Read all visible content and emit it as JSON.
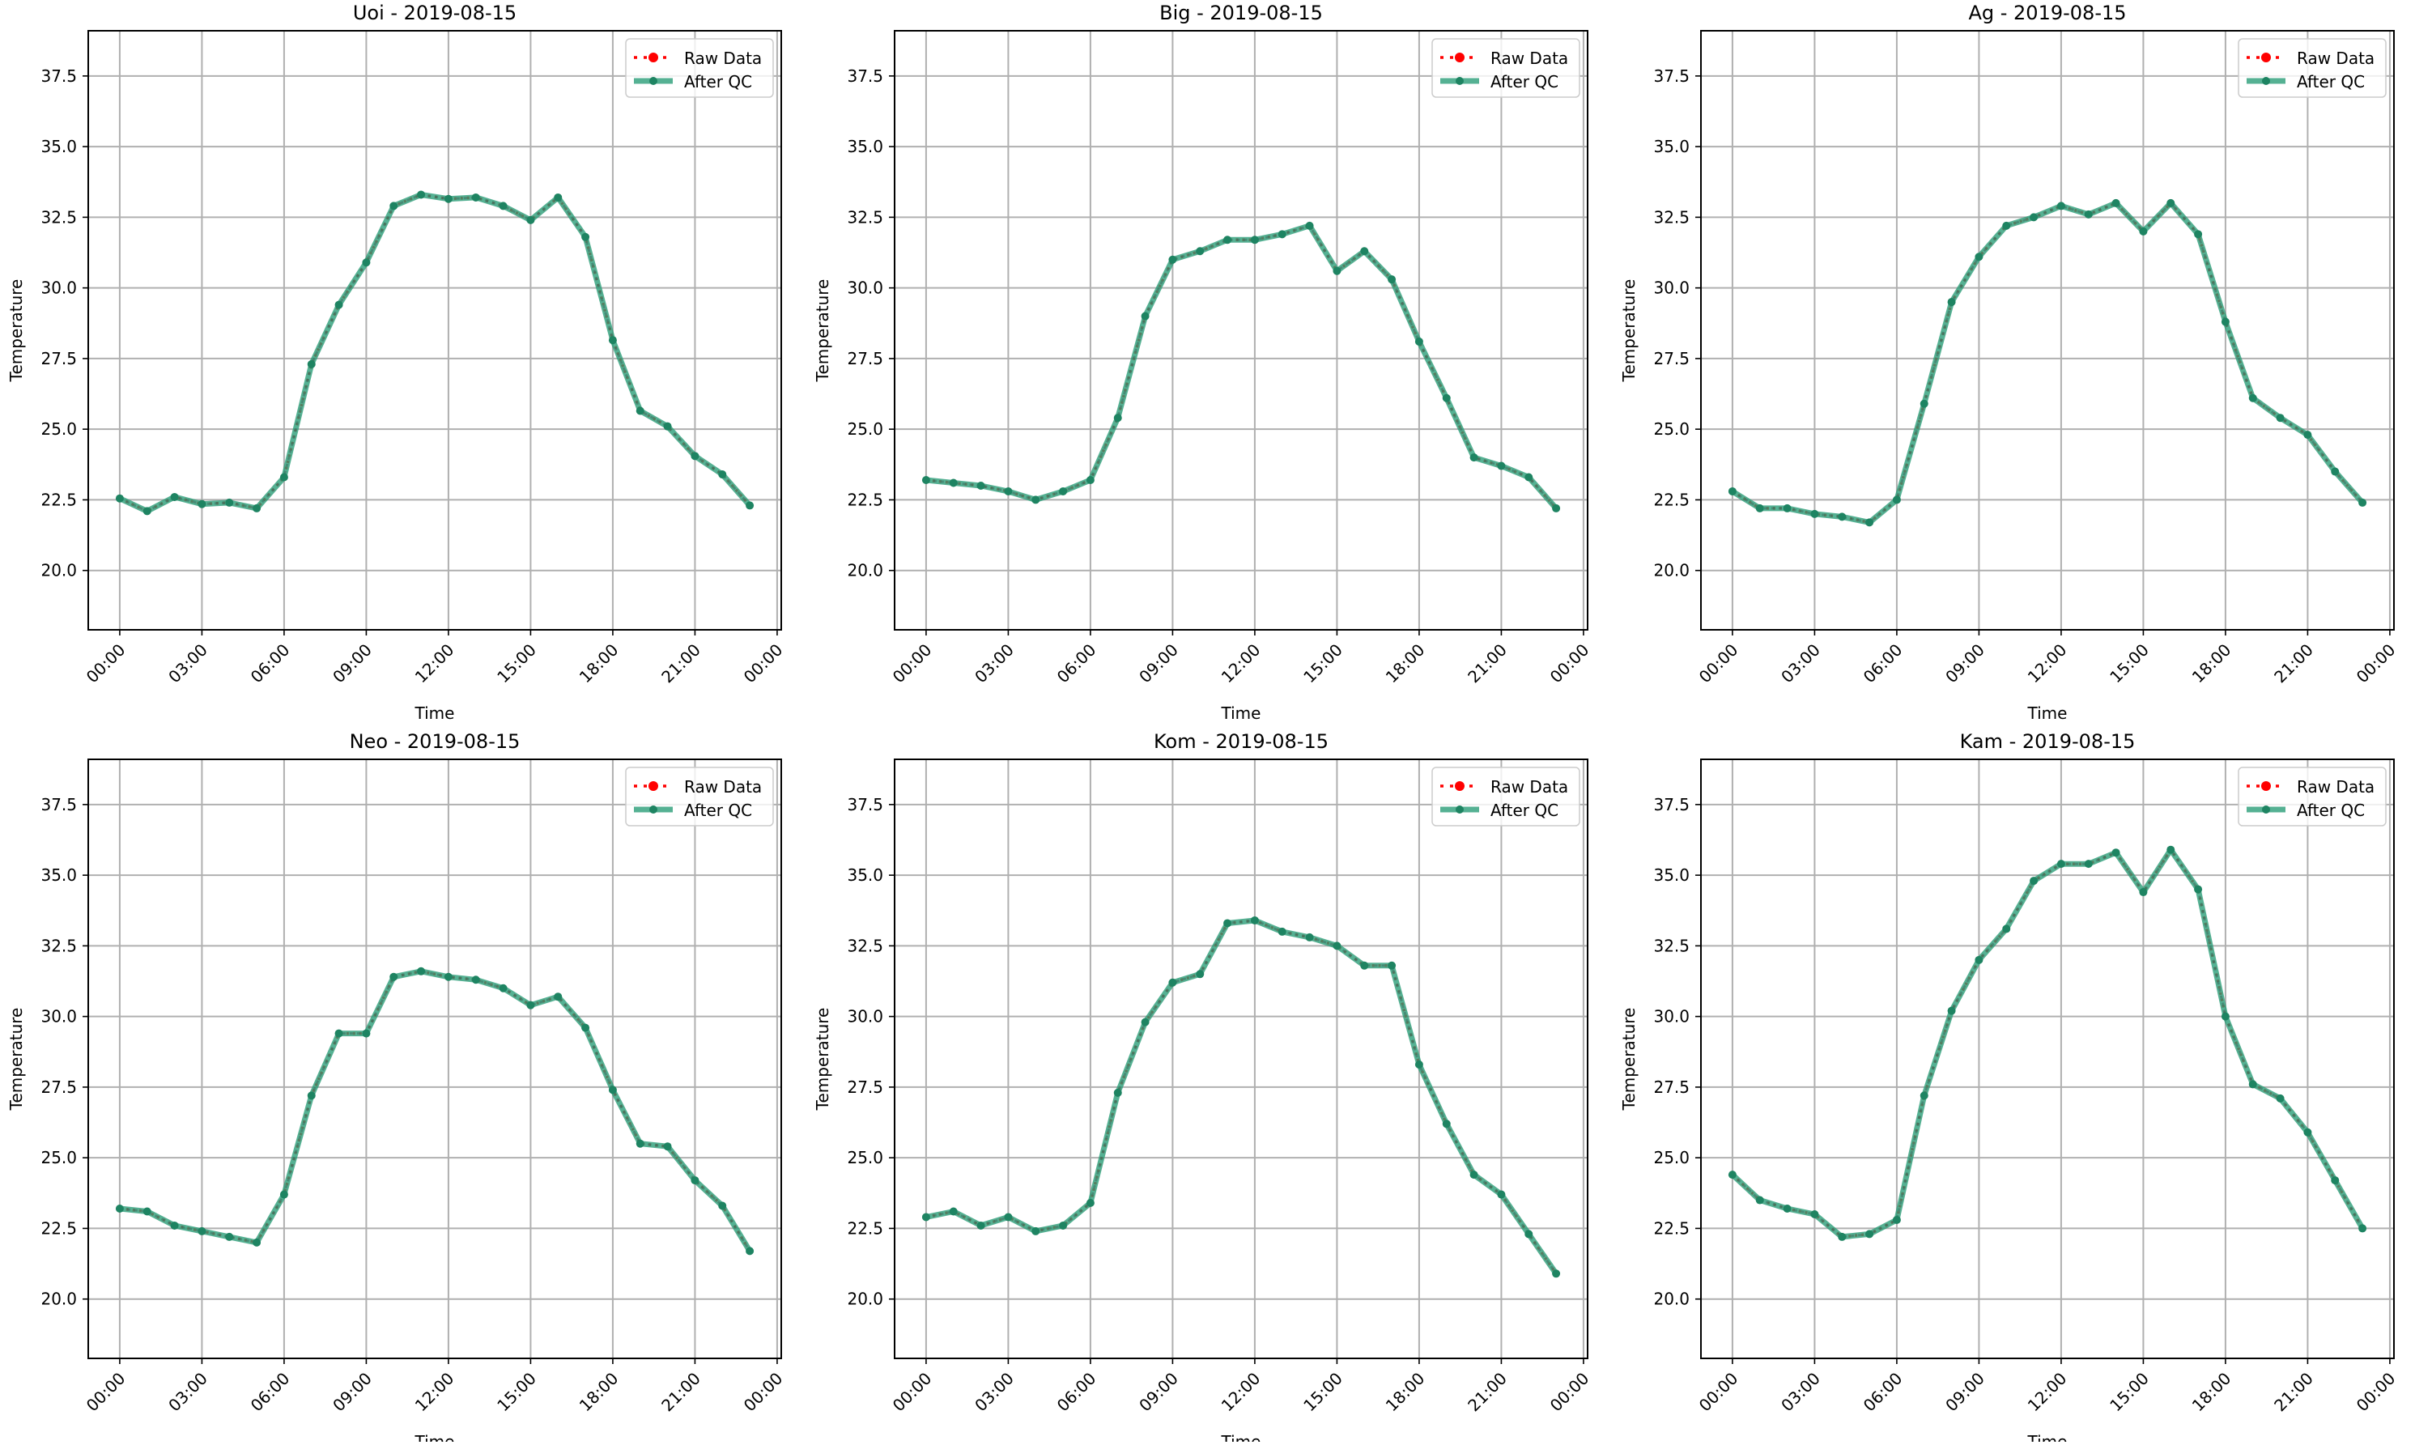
{
  "colors": {
    "raw": "#ff0000",
    "qc": "#2a9d78",
    "qc_marker": "#1e8462",
    "grid": "#b0b0b0"
  },
  "chart_data": [
    {
      "type": "line",
      "title": "Uoi - 2019-08-15",
      "xlabel": "Time",
      "ylabel": "Temperature",
      "x_tick_labels": [
        "00:00",
        "03:00",
        "06:00",
        "09:00",
        "12:00",
        "15:00",
        "18:00",
        "21:00",
        "00:00"
      ],
      "y_ticks": [
        20.0,
        22.5,
        25.0,
        27.5,
        30.0,
        32.5,
        35.0,
        37.5
      ],
      "ylim": [
        17.9,
        39.1
      ],
      "grid": true,
      "legend": "top-right",
      "x_hours": [
        0,
        1,
        2,
        3,
        4,
        5,
        6,
        7,
        8,
        9,
        10,
        11,
        12,
        13,
        14,
        15,
        16,
        17,
        18,
        19,
        20,
        21,
        22,
        23
      ],
      "series": [
        {
          "name": "Raw Data",
          "style": "dotted",
          "values": [
            22.55,
            22.1,
            22.6,
            22.35,
            22.4,
            22.2,
            23.3,
            27.3,
            29.4,
            30.9,
            32.9,
            33.3,
            33.15,
            33.2,
            32.9,
            32.4,
            33.2,
            31.8,
            28.15,
            25.65,
            25.1,
            24.05,
            23.4,
            22.3
          ]
        },
        {
          "name": "After QC",
          "style": "solid",
          "values": [
            22.55,
            22.1,
            22.6,
            22.35,
            22.4,
            22.2,
            23.3,
            27.3,
            29.4,
            30.9,
            32.9,
            33.3,
            33.15,
            33.2,
            32.9,
            32.4,
            33.2,
            31.8,
            28.15,
            25.65,
            25.1,
            24.05,
            23.4,
            22.3
          ]
        }
      ]
    },
    {
      "type": "line",
      "title": "Big - 2019-08-15",
      "xlabel": "Time",
      "ylabel": "Temperature",
      "x_tick_labels": [
        "00:00",
        "03:00",
        "06:00",
        "09:00",
        "12:00",
        "15:00",
        "18:00",
        "21:00",
        "00:00"
      ],
      "y_ticks": [
        20.0,
        22.5,
        25.0,
        27.5,
        30.0,
        32.5,
        35.0,
        37.5
      ],
      "ylim": [
        17.9,
        39.1
      ],
      "grid": true,
      "legend": "top-right",
      "x_hours": [
        0,
        1,
        2,
        3,
        4,
        5,
        6,
        7,
        8,
        9,
        10,
        11,
        12,
        13,
        14,
        15,
        16,
        17,
        18,
        19,
        20,
        21,
        22,
        23
      ],
      "series": [
        {
          "name": "Raw Data",
          "style": "dotted",
          "values": [
            23.2,
            23.1,
            23.0,
            22.8,
            22.5,
            22.8,
            23.2,
            25.4,
            29.0,
            31.0,
            31.3,
            31.7,
            31.7,
            31.9,
            32.2,
            30.6,
            31.3,
            30.3,
            28.1,
            26.1,
            24.0,
            23.7,
            23.3,
            22.2
          ]
        },
        {
          "name": "After QC",
          "style": "solid",
          "values": [
            23.2,
            23.1,
            23.0,
            22.8,
            22.5,
            22.8,
            23.2,
            25.4,
            29.0,
            31.0,
            31.3,
            31.7,
            31.7,
            31.9,
            32.2,
            30.6,
            31.3,
            30.3,
            28.1,
            26.1,
            24.0,
            23.7,
            23.3,
            22.2
          ]
        }
      ]
    },
    {
      "type": "line",
      "title": "Ag - 2019-08-15",
      "xlabel": "Time",
      "ylabel": "Temperature",
      "x_tick_labels": [
        "00:00",
        "03:00",
        "06:00",
        "09:00",
        "12:00",
        "15:00",
        "18:00",
        "21:00",
        "00:00"
      ],
      "y_ticks": [
        20.0,
        22.5,
        25.0,
        27.5,
        30.0,
        32.5,
        35.0,
        37.5
      ],
      "ylim": [
        17.9,
        39.1
      ],
      "grid": true,
      "legend": "top-right",
      "x_hours": [
        0,
        1,
        2,
        3,
        4,
        5,
        6,
        7,
        8,
        9,
        10,
        11,
        12,
        13,
        14,
        15,
        16,
        17,
        18,
        19,
        20,
        21,
        22,
        23
      ],
      "series": [
        {
          "name": "Raw Data",
          "style": "dotted",
          "values": [
            22.8,
            22.2,
            22.2,
            22.0,
            21.9,
            21.7,
            22.5,
            25.9,
            29.5,
            31.1,
            32.2,
            32.5,
            32.9,
            32.6,
            33.0,
            32.0,
            33.0,
            31.9,
            28.8,
            26.1,
            25.4,
            24.8,
            23.5,
            22.4
          ]
        },
        {
          "name": "After QC",
          "style": "solid",
          "values": [
            22.8,
            22.2,
            22.2,
            22.0,
            21.9,
            21.7,
            22.5,
            25.9,
            29.5,
            31.1,
            32.2,
            32.5,
            32.9,
            32.6,
            33.0,
            32.0,
            33.0,
            31.9,
            28.8,
            26.1,
            25.4,
            24.8,
            23.5,
            22.4
          ]
        }
      ]
    },
    {
      "type": "line",
      "title": "Neo - 2019-08-15",
      "xlabel": "Time",
      "ylabel": "Temperature",
      "x_tick_labels": [
        "00:00",
        "03:00",
        "06:00",
        "09:00",
        "12:00",
        "15:00",
        "18:00",
        "21:00",
        "00:00"
      ],
      "y_ticks": [
        20.0,
        22.5,
        25.0,
        27.5,
        30.0,
        32.5,
        35.0,
        37.5
      ],
      "ylim": [
        17.9,
        39.1
      ],
      "grid": true,
      "legend": "top-right",
      "x_hours": [
        0,
        1,
        2,
        3,
        4,
        5,
        6,
        7,
        8,
        9,
        10,
        11,
        12,
        13,
        14,
        15,
        16,
        17,
        18,
        19,
        20,
        21,
        22,
        23
      ],
      "series": [
        {
          "name": "Raw Data",
          "style": "dotted",
          "values": [
            23.2,
            23.1,
            22.6,
            22.4,
            22.2,
            22.0,
            23.7,
            27.2,
            29.4,
            29.4,
            31.4,
            31.6,
            31.4,
            31.3,
            31.0,
            30.4,
            30.7,
            29.6,
            27.4,
            25.5,
            25.4,
            24.2,
            23.3,
            21.7
          ]
        },
        {
          "name": "After QC",
          "style": "solid",
          "values": [
            23.2,
            23.1,
            22.6,
            22.4,
            22.2,
            22.0,
            23.7,
            27.2,
            29.4,
            29.4,
            31.4,
            31.6,
            31.4,
            31.3,
            31.0,
            30.4,
            30.7,
            29.6,
            27.4,
            25.5,
            25.4,
            24.2,
            23.3,
            21.7
          ]
        }
      ]
    },
    {
      "type": "line",
      "title": "Kom - 2019-08-15",
      "xlabel": "Time",
      "ylabel": "Temperature",
      "x_tick_labels": [
        "00:00",
        "03:00",
        "06:00",
        "09:00",
        "12:00",
        "15:00",
        "18:00",
        "21:00",
        "00:00"
      ],
      "y_ticks": [
        20.0,
        22.5,
        25.0,
        27.5,
        30.0,
        32.5,
        35.0,
        37.5
      ],
      "ylim": [
        17.9,
        39.1
      ],
      "grid": true,
      "legend": "top-right",
      "x_hours": [
        0,
        1,
        2,
        3,
        4,
        5,
        6,
        7,
        8,
        9,
        10,
        11,
        12,
        13,
        14,
        15,
        16,
        17,
        18,
        19,
        20,
        21,
        22,
        23
      ],
      "series": [
        {
          "name": "Raw Data",
          "style": "dotted",
          "values": [
            22.9,
            23.1,
            22.6,
            22.9,
            22.4,
            22.6,
            23.4,
            27.3,
            29.8,
            31.2,
            31.5,
            33.3,
            33.4,
            33.0,
            32.8,
            32.5,
            31.8,
            31.8,
            28.3,
            26.2,
            24.4,
            23.7,
            22.3,
            20.9
          ]
        },
        {
          "name": "After QC",
          "style": "solid",
          "values": [
            22.9,
            23.1,
            22.6,
            22.9,
            22.4,
            22.6,
            23.4,
            27.3,
            29.8,
            31.2,
            31.5,
            33.3,
            33.4,
            33.0,
            32.8,
            32.5,
            31.8,
            31.8,
            28.3,
            26.2,
            24.4,
            23.7,
            22.3,
            20.9
          ]
        }
      ]
    },
    {
      "type": "line",
      "title": "Kam - 2019-08-15",
      "xlabel": "Time",
      "ylabel": "Temperature",
      "x_tick_labels": [
        "00:00",
        "03:00",
        "06:00",
        "09:00",
        "12:00",
        "15:00",
        "18:00",
        "21:00",
        "00:00"
      ],
      "y_ticks": [
        20.0,
        22.5,
        25.0,
        27.5,
        30.0,
        32.5,
        35.0,
        37.5
      ],
      "ylim": [
        17.9,
        39.1
      ],
      "grid": true,
      "legend": "top-right",
      "x_hours": [
        0,
        1,
        2,
        3,
        4,
        5,
        6,
        7,
        8,
        9,
        10,
        11,
        12,
        13,
        14,
        15,
        16,
        17,
        18,
        19,
        20,
        21,
        22,
        23
      ],
      "series": [
        {
          "name": "Raw Data",
          "style": "dotted",
          "values": [
            24.4,
            23.5,
            23.2,
            23.0,
            22.2,
            22.3,
            22.8,
            27.2,
            30.2,
            32.0,
            33.1,
            34.8,
            35.4,
            35.4,
            35.8,
            34.4,
            35.9,
            34.5,
            30.0,
            27.6,
            27.1,
            25.9,
            24.2,
            22.5
          ]
        },
        {
          "name": "After QC",
          "style": "solid",
          "values": [
            24.4,
            23.5,
            23.2,
            23.0,
            22.2,
            22.3,
            22.8,
            27.2,
            30.2,
            32.0,
            33.1,
            34.8,
            35.4,
            35.4,
            35.8,
            34.4,
            35.9,
            34.5,
            30.0,
            27.6,
            27.1,
            25.9,
            24.2,
            22.5
          ]
        }
      ]
    }
  ]
}
